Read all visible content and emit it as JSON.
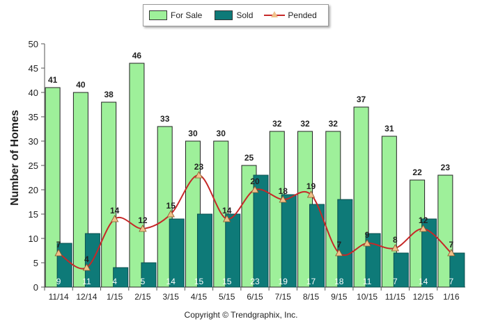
{
  "legend": {
    "for_sale": "For Sale",
    "sold": "Sold",
    "pended": "Pended"
  },
  "ylabel": "Number of Homes",
  "copyright": "Copyright © Trendgraphix, Inc.",
  "colors": {
    "for_sale": "#9ef09a",
    "sold": "#0e7a78",
    "pended": "#c62828",
    "marker": "#f0c08a"
  },
  "chart_data": {
    "type": "bar",
    "categories": [
      "11/14",
      "12/14",
      "1/15",
      "2/15",
      "3/15",
      "4/15",
      "5/15",
      "6/15",
      "7/15",
      "8/15",
      "9/15",
      "10/15",
      "11/15",
      "12/15",
      "1/16"
    ],
    "series": [
      {
        "name": "For Sale",
        "values": [
          41,
          40,
          38,
          46,
          33,
          30,
          30,
          25,
          32,
          32,
          32,
          37,
          31,
          22,
          23
        ]
      },
      {
        "name": "Sold",
        "values": [
          9,
          11,
          4,
          5,
          14,
          15,
          15,
          23,
          19,
          17,
          18,
          11,
          7,
          14,
          7
        ]
      },
      {
        "name": "Pended",
        "type": "line",
        "values": [
          7,
          4,
          14,
          12,
          15,
          23,
          14,
          20,
          18,
          19,
          7,
          9,
          8,
          12,
          7
        ]
      }
    ],
    "ylabel": "Number of Homes",
    "ylim": [
      0,
      50
    ],
    "yticks": [
      0,
      5,
      10,
      15,
      20,
      25,
      30,
      35,
      40,
      45,
      50
    ],
    "grid": false,
    "legend_position": "top"
  }
}
